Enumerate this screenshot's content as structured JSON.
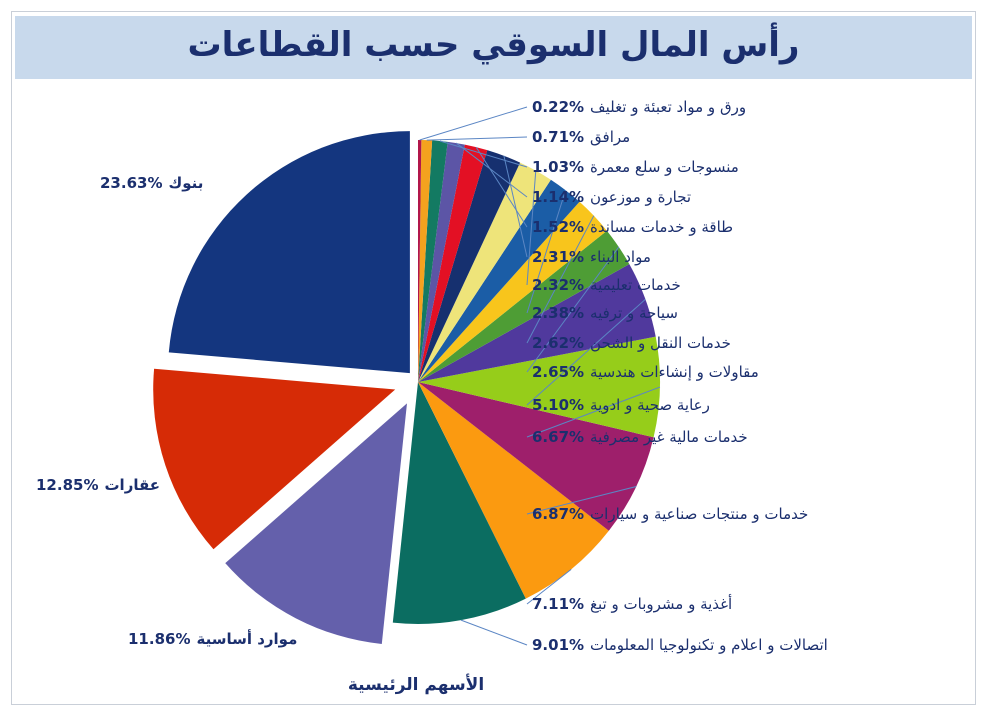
{
  "title": "رأس المال السوقي حسب القطاعات",
  "colors": {
    "title_bg": "#c8d9ec",
    "text": "#1b2f6e",
    "leader": "#5b86c4"
  },
  "chart_data": {
    "type": "pie",
    "title": "رأس المال السوقي حسب القطاعات",
    "group_label": "الأسهم الرئيسية",
    "slices": [
      {
        "name": "بنوك",
        "value": 23.63,
        "pct_label": "23.63%",
        "color": "#14367f",
        "exploded": true
      },
      {
        "name": "عقارات",
        "value": 12.85,
        "pct_label": "12.85%",
        "color": "#d62b06",
        "exploded": true
      },
      {
        "name": "موارد أساسية",
        "value": 11.86,
        "pct_label": "11.86%",
        "color": "#6460ab",
        "exploded": true
      },
      {
        "name": "اتصالات و اعلام و تكنولوجيا المعلومات",
        "value": 9.01,
        "pct_label": "9.01%",
        "color": "#0b6d61"
      },
      {
        "name": "أغذية و مشروبات و تبغ",
        "value": 7.11,
        "pct_label": "7.11%",
        "color": "#fb9a10"
      },
      {
        "name": "خدمات و منتجات صناعية و سيارات",
        "value": 6.87,
        "pct_label": "6.87%",
        "color": "#9e1f6b"
      },
      {
        "name": "خدمات مالية غير مصرفية",
        "value": 6.67,
        "pct_label": "6.67%",
        "color": "#96cd1a"
      },
      {
        "name": "رعاية صحية و ادوية",
        "value": 5.1,
        "pct_label": "5.10%",
        "color": "#50399d"
      },
      {
        "name": "مقاولات و إنشاءات هندسية",
        "value": 2.65,
        "pct_label": "2.65%",
        "color": "#4e9d35"
      },
      {
        "name": "خدمات النقل و الشحن",
        "value": 2.62,
        "pct_label": "2.62%",
        "color": "#f8c51c"
      },
      {
        "name": "سياحة و ترفيه",
        "value": 2.38,
        "pct_label": "2.38%",
        "color": "#1b5da6"
      },
      {
        "name": "خدمات تعليمية",
        "value": 2.32,
        "pct_label": "2.32%",
        "color": "#eee47a"
      },
      {
        "name": "مواد البناء",
        "value": 2.31,
        "pct_label": "2.31%",
        "color": "#16306f"
      },
      {
        "name": "طاقة و خدمات مساندة",
        "value": 1.52,
        "pct_label": "1.52%",
        "color": "#e31024"
      },
      {
        "name": "تجارة و موزعون",
        "value": 1.14,
        "pct_label": "1.14%",
        "color": "#5c55a6"
      },
      {
        "name": "منسوجات و سلع معمرة",
        "value": 1.03,
        "pct_label": "1.03%",
        "color": "#137a62"
      },
      {
        "name": "مرافق",
        "value": 0.71,
        "pct_label": "0.71%",
        "color": "#f4a21e"
      },
      {
        "name": "ورق و مواد تعبئة و تغليف",
        "value": 0.22,
        "pct_label": "0.22%",
        "color": "#b2164a"
      }
    ]
  }
}
